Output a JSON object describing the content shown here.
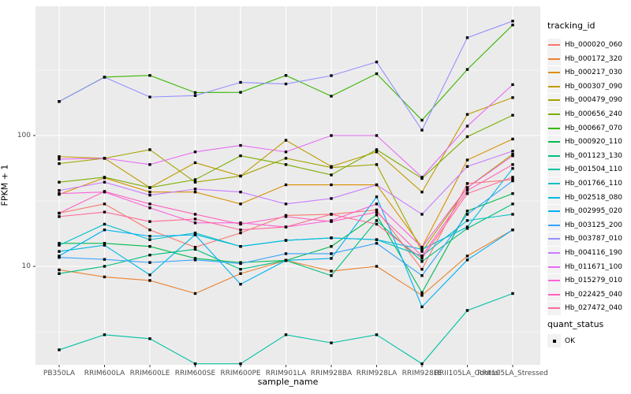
{
  "chart_data": {
    "type": "line",
    "title": "",
    "xlabel": "sample_name",
    "ylabel": "FPKM + 1",
    "yscale": "log10",
    "ylim": [
      1.77,
      970
    ],
    "yticks": [
      10,
      100
    ],
    "yticks_minor": [
      3.1623,
      31.623,
      316.23
    ],
    "grid": true,
    "legend_position": "right",
    "panel_background": "#EBEBEB",
    "grid_color": "#FFFFFF",
    "point_color": "#000000",
    "categories": [
      "PB350LA",
      "RRIM600LA",
      "RRIM600LE",
      "RRIM600SE",
      "RRIM600PE",
      "RRIM901LA",
      "RRIM928BA",
      "RRIM928LA",
      "RRIM928LE",
      "RRII105LA_Control",
      "RRII105LA_Stressed"
    ],
    "legend_title": "tracking_id",
    "series": [
      {
        "name": "Hb_000020_060",
        "color": "#F8766D",
        "values": [
          25.5,
          30,
          19,
          14,
          18,
          24.5,
          25,
          27,
          9.5,
          43,
          46
        ]
      },
      {
        "name": "Hb_000172_320",
        "color": "#EA8331",
        "values": [
          9.4,
          8.3,
          7.8,
          6.2,
          8.8,
          11.1,
          9.2,
          10,
          6.0,
          12,
          19
        ]
      },
      {
        "name": "Hb_000217_030",
        "color": "#D89000",
        "values": [
          35.5,
          47.5,
          37,
          37,
          30,
          42,
          42,
          42,
          14,
          65,
          94
        ]
      },
      {
        "name": "Hb_000307_090",
        "color": "#C09B00",
        "values": [
          69,
          67,
          40,
          62,
          49,
          92,
          58,
          75,
          37,
          145,
          195
        ]
      },
      {
        "name": "Hb_000479_090",
        "color": "#A3A500",
        "values": [
          61,
          67,
          78,
          44,
          49,
          67,
          57,
          60,
          13,
          40,
          72
        ]
      },
      {
        "name": "Hb_000656_240",
        "color": "#7CAE00",
        "values": [
          44,
          48,
          40,
          46,
          70,
          60,
          50,
          78,
          47,
          98,
          143
        ]
      },
      {
        "name": "Hb_000667_070",
        "color": "#39B600",
        "values": [
          182,
          280,
          288,
          213,
          214,
          288,
          200,
          297,
          131,
          320,
          700
        ]
      },
      {
        "name": "Hb_000920_110",
        "color": "#00BB4E",
        "values": [
          15,
          15,
          14.2,
          11.5,
          10.7,
          11.1,
          14.2,
          24.7,
          6.3,
          26.5,
          36
        ]
      },
      {
        "name": "Hb_001123_130",
        "color": "#00BF7D",
        "values": [
          8.8,
          10,
          12.2,
          13.5,
          9.5,
          11.1,
          8.5,
          22.4,
          10.9,
          19.5,
          30
        ]
      },
      {
        "name": "Hb_001504_110",
        "color": "#00C1A3",
        "values": [
          2.3,
          3.0,
          2.8,
          1.8,
          1.8,
          3.0,
          2.6,
          3.0,
          1.8,
          4.6,
          6.2
        ]
      },
      {
        "name": "Hb_001766_110",
        "color": "#00BFC4",
        "values": [
          14.5,
          21,
          16,
          18,
          14.2,
          15.8,
          16.5,
          16,
          12,
          22.4,
          25
        ]
      },
      {
        "name": "Hb_002518_080",
        "color": "#00BAE0",
        "values": [
          13,
          14.5,
          8.6,
          17.5,
          14.2,
          15.8,
          16.5,
          16,
          13.5,
          20,
          56
        ]
      },
      {
        "name": "Hb_002995_020",
        "color": "#00B0F6",
        "values": [
          12,
          19,
          17,
          17.4,
          7.3,
          11.1,
          11.5,
          34,
          4.9,
          11.2,
          19
        ]
      },
      {
        "name": "Hb_003125_200",
        "color": "#35A2FF",
        "values": [
          11.7,
          11.3,
          10.7,
          11.2,
          10.5,
          12.5,
          12.5,
          15,
          8.5,
          25,
          45
        ]
      },
      {
        "name": "Hb_003787_010",
        "color": "#9590FF",
        "values": [
          182,
          279,
          197,
          202,
          255,
          248,
          287,
          365,
          110,
          560,
          750
        ]
      },
      {
        "name": "Hb_004116_190",
        "color": "#C77CFF",
        "values": [
          38,
          44,
          35,
          39,
          37,
          30,
          33,
          42,
          25,
          58,
          76
        ]
      },
      {
        "name": "Hb_011671_100",
        "color": "#E76BF3",
        "values": [
          66,
          67,
          60,
          75,
          84,
          75,
          100,
          100,
          48,
          118,
          245
        ]
      },
      {
        "name": "Hb_015279_010",
        "color": "#FA62DB",
        "values": [
          36,
          37,
          28,
          21.5,
          21.5,
          20,
          22.4,
          30,
          14,
          40,
          70
        ]
      },
      {
        "name": "Hb_022425_040",
        "color": "#FF62BC",
        "values": [
          25.5,
          37.4,
          30,
          25,
          21,
          24,
          22,
          26,
          12,
          38,
          60
        ]
      },
      {
        "name": "Hb_027472_040",
        "color": "#FF6A98",
        "values": [
          24,
          26,
          22,
          23,
          19,
          20,
          25,
          21,
          11.5,
          36,
          48
        ]
      }
    ],
    "legend2_title": "quant_status",
    "legend2_items": [
      {
        "label": "OK",
        "marker": "black-square"
      }
    ]
  }
}
